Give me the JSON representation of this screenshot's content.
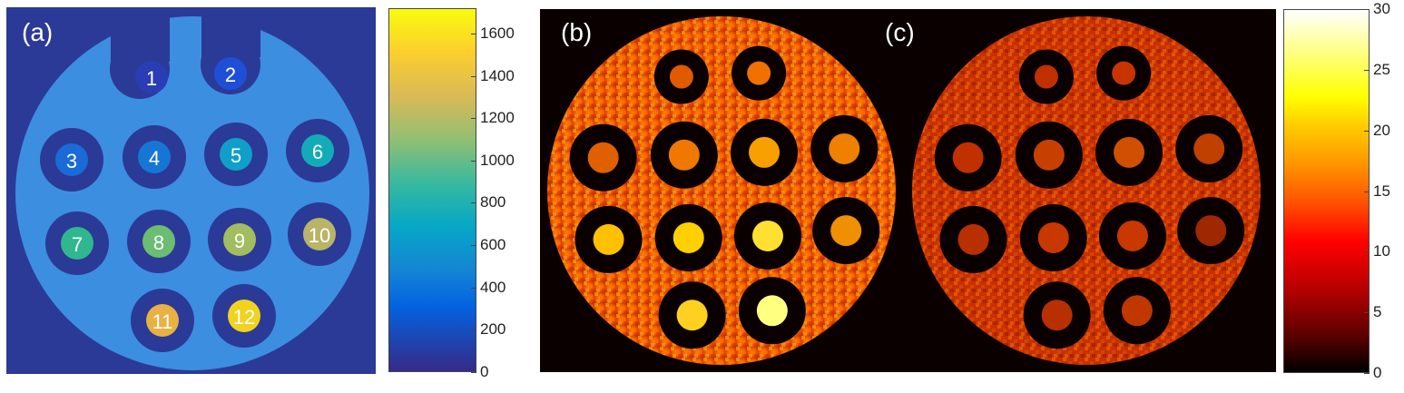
{
  "panels": {
    "a": {
      "label": "(a)"
    },
    "b": {
      "label": "(b)"
    },
    "c": {
      "label": "(c)"
    }
  },
  "vials": {
    "labels": [
      "1",
      "2",
      "3",
      "4",
      "5",
      "6",
      "7",
      "8",
      "9",
      "10",
      "11",
      "12"
    ],
    "fill_colors": [
      "#2a3db5",
      "#1f4fd6",
      "#1a6ad8",
      "#1676d4",
      "#0f9fc8",
      "#14abb9",
      "#30b78e",
      "#6bbd72",
      "#a2bd5f",
      "#b9b466",
      "#e8b142",
      "#f2d21f"
    ]
  },
  "colorbar_a": {
    "ticks": [
      "1600",
      "1400",
      "1200",
      "1000",
      "800",
      "600",
      "400",
      "200",
      "0"
    ],
    "colormap": "parula"
  },
  "colorbar_bc": {
    "ticks": [
      "30",
      "25",
      "20",
      "15",
      "10",
      "5",
      "0"
    ],
    "colormap": "hot"
  },
  "colors": {
    "phantom_body": "#3c8ee0",
    "background_a": "#2b3a96",
    "ring_a": "#2b3a96",
    "background_bc": "#0a0000"
  }
}
